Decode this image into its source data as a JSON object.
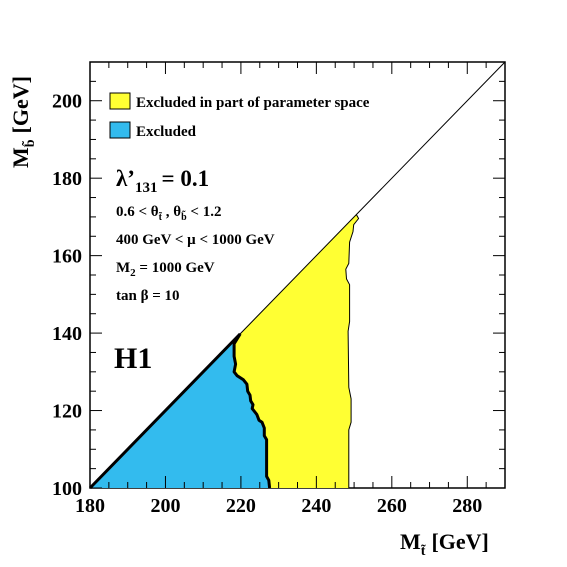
{
  "chart_data": {
    "type": "area",
    "xlabel": "M",
    "xlabel_sub": "t̃",
    "xlabel_unit": "[GeV]",
    "ylabel": "M",
    "ylabel_sub": "b̃",
    "ylabel_unit": "[GeV]",
    "xlim": [
      180,
      290
    ],
    "ylim": [
      100,
      210
    ],
    "xticks": [
      180,
      200,
      220,
      240,
      260,
      280
    ],
    "yticks": [
      100,
      120,
      140,
      160,
      180,
      200
    ],
    "grid": false,
    "legend": {
      "placement": "top-left",
      "entries": [
        {
          "label": "Excluded in part of parameter space",
          "color": "#ffff33"
        },
        {
          "label": "Excluded",
          "color": "#33bbee"
        }
      ]
    },
    "annotations": {
      "lambda": "λ’",
      "lambda_sub": "131",
      "lambda_val": "= 0.1",
      "theta_pre": "0.6 < θ",
      "theta_sub1": "t̃",
      "theta_mid": " , θ",
      "theta_sub2": "b̃",
      "theta_post": " < 1.2",
      "mu": "400 GeV < μ < 1000 GeV",
      "m2_pre": "M",
      "m2_sub": "2",
      "m2_post": " = 1000 GeV",
      "tanb": "tan β = 10",
      "experiment": "H1"
    },
    "diagonal": {
      "x": [
        180,
        290
      ],
      "y": [
        100,
        210
      ]
    },
    "series": [
      {
        "name": "Excluded in part of parameter space",
        "color": "#ffff33",
        "boundary": [
          {
            "x": 250.6,
            "y": 170.6
          },
          {
            "x": 251.2,
            "y": 169.6
          },
          {
            "x": 249.9,
            "y": 168.0
          },
          {
            "x": 249.7,
            "y": 166.2
          },
          {
            "x": 248.8,
            "y": 163.5
          },
          {
            "x": 248.6,
            "y": 158.0
          },
          {
            "x": 247.8,
            "y": 156.5
          },
          {
            "x": 248.0,
            "y": 154.0
          },
          {
            "x": 248.8,
            "y": 152.5
          },
          {
            "x": 248.8,
            "y": 143.0
          },
          {
            "x": 248.4,
            "y": 140.5
          },
          {
            "x": 248.6,
            "y": 126.0
          },
          {
            "x": 249.2,
            "y": 123.0
          },
          {
            "x": 249.2,
            "y": 117.0
          },
          {
            "x": 248.6,
            "y": 115.0
          },
          {
            "x": 248.6,
            "y": 100.0
          }
        ]
      },
      {
        "name": "Excluded",
        "color": "#33bbee",
        "boundary": [
          {
            "x": 219.8,
            "y": 139.8
          },
          {
            "x": 218.2,
            "y": 137.2
          },
          {
            "x": 218.2,
            "y": 134.0
          },
          {
            "x": 218.6,
            "y": 132.0
          },
          {
            "x": 218.2,
            "y": 130.0
          },
          {
            "x": 219.0,
            "y": 129.0
          },
          {
            "x": 220.6,
            "y": 128.0
          },
          {
            "x": 221.6,
            "y": 126.8
          },
          {
            "x": 221.8,
            "y": 125.0
          },
          {
            "x": 222.4,
            "y": 124.0
          },
          {
            "x": 222.6,
            "y": 122.5
          },
          {
            "x": 223.2,
            "y": 121.5
          },
          {
            "x": 223.0,
            "y": 120.5
          },
          {
            "x": 224.2,
            "y": 119.0
          },
          {
            "x": 224.8,
            "y": 117.5
          },
          {
            "x": 225.6,
            "y": 117.0
          },
          {
            "x": 226.2,
            "y": 115.5
          },
          {
            "x": 226.2,
            "y": 113.5
          },
          {
            "x": 226.8,
            "y": 112.5
          },
          {
            "x": 226.8,
            "y": 103.0
          },
          {
            "x": 227.4,
            "y": 102.0
          },
          {
            "x": 227.6,
            "y": 100.0
          }
        ]
      }
    ]
  }
}
